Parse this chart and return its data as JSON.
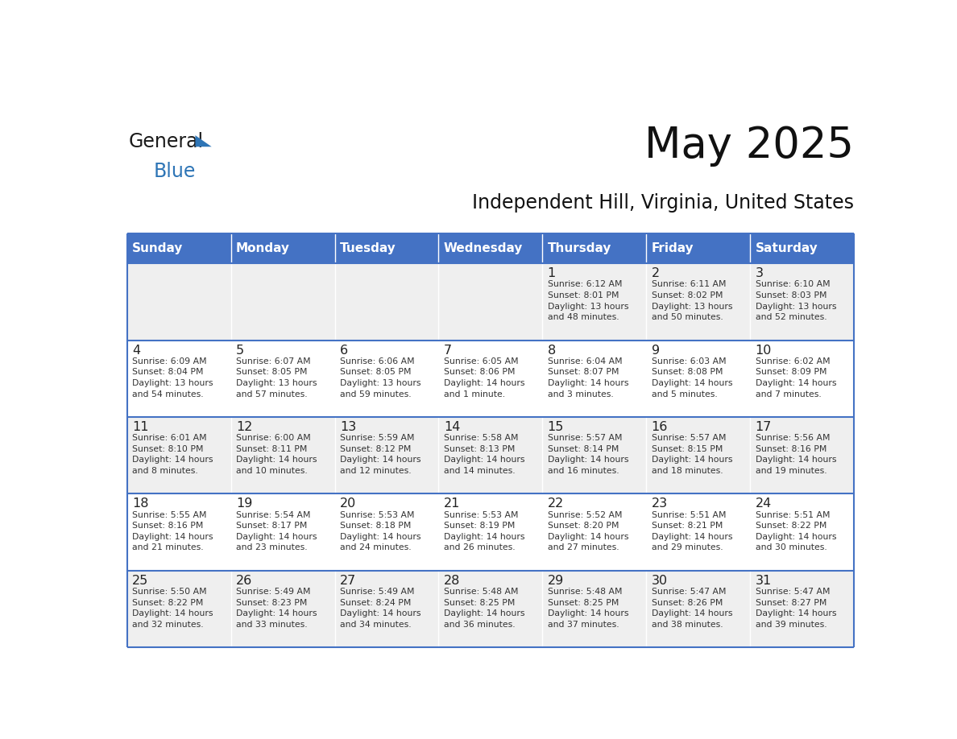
{
  "title": "May 2025",
  "subtitle": "Independent Hill, Virginia, United States",
  "header_bg": "#4472C4",
  "header_text_color": "#FFFFFF",
  "days_of_week": [
    "Sunday",
    "Monday",
    "Tuesday",
    "Wednesday",
    "Thursday",
    "Friday",
    "Saturday"
  ],
  "row_bg_even": "#EFEFEF",
  "row_bg_odd": "#FFFFFF",
  "cell_border_color": "#4472C4",
  "day_number_color": "#222222",
  "info_text_color": "#333333",
  "calendar_data": [
    [
      null,
      null,
      null,
      null,
      {
        "day": 1,
        "sunrise": "6:12 AM",
        "sunset": "8:01 PM",
        "daylight": "13 hours\nand 48 minutes."
      },
      {
        "day": 2,
        "sunrise": "6:11 AM",
        "sunset": "8:02 PM",
        "daylight": "13 hours\nand 50 minutes."
      },
      {
        "day": 3,
        "sunrise": "6:10 AM",
        "sunset": "8:03 PM",
        "daylight": "13 hours\nand 52 minutes."
      }
    ],
    [
      {
        "day": 4,
        "sunrise": "6:09 AM",
        "sunset": "8:04 PM",
        "daylight": "13 hours\nand 54 minutes."
      },
      {
        "day": 5,
        "sunrise": "6:07 AM",
        "sunset": "8:05 PM",
        "daylight": "13 hours\nand 57 minutes."
      },
      {
        "day": 6,
        "sunrise": "6:06 AM",
        "sunset": "8:05 PM",
        "daylight": "13 hours\nand 59 minutes."
      },
      {
        "day": 7,
        "sunrise": "6:05 AM",
        "sunset": "8:06 PM",
        "daylight": "14 hours\nand 1 minute."
      },
      {
        "day": 8,
        "sunrise": "6:04 AM",
        "sunset": "8:07 PM",
        "daylight": "14 hours\nand 3 minutes."
      },
      {
        "day": 9,
        "sunrise": "6:03 AM",
        "sunset": "8:08 PM",
        "daylight": "14 hours\nand 5 minutes."
      },
      {
        "day": 10,
        "sunrise": "6:02 AM",
        "sunset": "8:09 PM",
        "daylight": "14 hours\nand 7 minutes."
      }
    ],
    [
      {
        "day": 11,
        "sunrise": "6:01 AM",
        "sunset": "8:10 PM",
        "daylight": "14 hours\nand 8 minutes."
      },
      {
        "day": 12,
        "sunrise": "6:00 AM",
        "sunset": "8:11 PM",
        "daylight": "14 hours\nand 10 minutes."
      },
      {
        "day": 13,
        "sunrise": "5:59 AM",
        "sunset": "8:12 PM",
        "daylight": "14 hours\nand 12 minutes."
      },
      {
        "day": 14,
        "sunrise": "5:58 AM",
        "sunset": "8:13 PM",
        "daylight": "14 hours\nand 14 minutes."
      },
      {
        "day": 15,
        "sunrise": "5:57 AM",
        "sunset": "8:14 PM",
        "daylight": "14 hours\nand 16 minutes."
      },
      {
        "day": 16,
        "sunrise": "5:57 AM",
        "sunset": "8:15 PM",
        "daylight": "14 hours\nand 18 minutes."
      },
      {
        "day": 17,
        "sunrise": "5:56 AM",
        "sunset": "8:16 PM",
        "daylight": "14 hours\nand 19 minutes."
      }
    ],
    [
      {
        "day": 18,
        "sunrise": "5:55 AM",
        "sunset": "8:16 PM",
        "daylight": "14 hours\nand 21 minutes."
      },
      {
        "day": 19,
        "sunrise": "5:54 AM",
        "sunset": "8:17 PM",
        "daylight": "14 hours\nand 23 minutes."
      },
      {
        "day": 20,
        "sunrise": "5:53 AM",
        "sunset": "8:18 PM",
        "daylight": "14 hours\nand 24 minutes."
      },
      {
        "day": 21,
        "sunrise": "5:53 AM",
        "sunset": "8:19 PM",
        "daylight": "14 hours\nand 26 minutes."
      },
      {
        "day": 22,
        "sunrise": "5:52 AM",
        "sunset": "8:20 PM",
        "daylight": "14 hours\nand 27 minutes."
      },
      {
        "day": 23,
        "sunrise": "5:51 AM",
        "sunset": "8:21 PM",
        "daylight": "14 hours\nand 29 minutes."
      },
      {
        "day": 24,
        "sunrise": "5:51 AM",
        "sunset": "8:22 PM",
        "daylight": "14 hours\nand 30 minutes."
      }
    ],
    [
      {
        "day": 25,
        "sunrise": "5:50 AM",
        "sunset": "8:22 PM",
        "daylight": "14 hours\nand 32 minutes."
      },
      {
        "day": 26,
        "sunrise": "5:49 AM",
        "sunset": "8:23 PM",
        "daylight": "14 hours\nand 33 minutes."
      },
      {
        "day": 27,
        "sunrise": "5:49 AM",
        "sunset": "8:24 PM",
        "daylight": "14 hours\nand 34 minutes."
      },
      {
        "day": 28,
        "sunrise": "5:48 AM",
        "sunset": "8:25 PM",
        "daylight": "14 hours\nand 36 minutes."
      },
      {
        "day": 29,
        "sunrise": "5:48 AM",
        "sunset": "8:25 PM",
        "daylight": "14 hours\nand 37 minutes."
      },
      {
        "day": 30,
        "sunrise": "5:47 AM",
        "sunset": "8:26 PM",
        "daylight": "14 hours\nand 38 minutes."
      },
      {
        "day": 31,
        "sunrise": "5:47 AM",
        "sunset": "8:27 PM",
        "daylight": "14 hours\nand 39 minutes."
      }
    ]
  ],
  "logo_general_color": "#1a1a1a",
  "logo_blue_color": "#2E75B6",
  "logo_triangle_color": "#2E75B6"
}
